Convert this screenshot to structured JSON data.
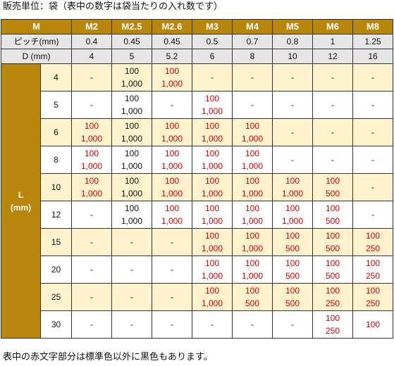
{
  "notes": {
    "top": "販売単位：袋（表中の数字は袋当たりの入れ数です）",
    "bottom": "表中の赤文字部分は標準色以外に黒色もあります。"
  },
  "header": {
    "m_label": "M",
    "sizes": [
      "M2",
      "M2.5",
      "M2.6",
      "M3",
      "M4",
      "M5",
      "M6",
      "M8"
    ],
    "pitch_label": "ピッチ(mm)",
    "pitch": [
      "0.4",
      "0.45",
      "0.45",
      "0.5",
      "0.7",
      "0.8",
      "1",
      "1.25"
    ],
    "d_label": "D (mm)",
    "d": [
      "4",
      "5",
      "5.2",
      "6",
      "8",
      "10",
      "12",
      "16"
    ]
  },
  "l_label_1": "L",
  "l_label_2": "(mm)",
  "rows": [
    {
      "L": "4",
      "shade": "cream",
      "cells": [
        {
          "v": [
            "-"
          ],
          "c": "blk"
        },
        {
          "v": [
            "100",
            "1,000"
          ],
          "c": "blk"
        },
        {
          "v": [
            "100",
            "1,000"
          ],
          "c": "red"
        },
        {
          "v": [
            "-"
          ],
          "c": "blk"
        },
        {
          "v": [
            "-"
          ],
          "c": "blk"
        },
        {
          "v": [
            "-"
          ],
          "c": "blk"
        },
        {
          "v": [
            "-"
          ],
          "c": "blk"
        },
        {
          "v": [
            "-"
          ],
          "c": "blk"
        }
      ]
    },
    {
      "L": "5",
      "shade": "white",
      "cells": [
        {
          "v": [
            "-"
          ],
          "c": "blk"
        },
        {
          "v": [
            "100",
            "1,000"
          ],
          "c": "blk"
        },
        {
          "v": [
            "-"
          ],
          "c": "blk"
        },
        {
          "v": [
            "100",
            "1,000"
          ],
          "c": "red"
        },
        {
          "v": [
            "-"
          ],
          "c": "blk"
        },
        {
          "v": [
            "-"
          ],
          "c": "blk"
        },
        {
          "v": [
            "-"
          ],
          "c": "blk"
        },
        {
          "v": [
            "-"
          ],
          "c": "blk"
        }
      ]
    },
    {
      "L": "6",
      "shade": "cream",
      "cells": [
        {
          "v": [
            "100",
            "1,000"
          ],
          "c": "red"
        },
        {
          "v": [
            "100",
            "1,000"
          ],
          "c": "blk"
        },
        {
          "v": [
            "100",
            "1,000"
          ],
          "c": "red"
        },
        {
          "v": [
            "100",
            "1,000"
          ],
          "c": "red"
        },
        {
          "v": [
            "100",
            "1,000"
          ],
          "c": "red"
        },
        {
          "v": [
            "-"
          ],
          "c": "blk"
        },
        {
          "v": [
            "-"
          ],
          "c": "blk"
        },
        {
          "v": [
            "-"
          ],
          "c": "blk"
        }
      ]
    },
    {
      "L": "8",
      "shade": "white",
      "cells": [
        {
          "v": [
            "100",
            "1,000"
          ],
          "c": "red"
        },
        {
          "v": [
            "100",
            "1,000"
          ],
          "c": "blk"
        },
        {
          "v": [
            "100",
            "1,000"
          ],
          "c": "red"
        },
        {
          "v": [
            "100",
            "1,000"
          ],
          "c": "red"
        },
        {
          "v": [
            "100",
            "1,000"
          ],
          "c": "red"
        },
        {
          "v": [
            "-"
          ],
          "c": "blk"
        },
        {
          "v": [
            "-"
          ],
          "c": "blk"
        },
        {
          "v": [
            "-"
          ],
          "c": "blk"
        }
      ]
    },
    {
      "L": "10",
      "shade": "cream",
      "cells": [
        {
          "v": [
            "100",
            "1,000"
          ],
          "c": "red"
        },
        {
          "v": [
            "100",
            "1,000"
          ],
          "c": "blk"
        },
        {
          "v": [
            "100",
            "1,000"
          ],
          "c": "red"
        },
        {
          "v": [
            "100",
            "1,000"
          ],
          "c": "red"
        },
        {
          "v": [
            "100",
            "1,000"
          ],
          "c": "red"
        },
        {
          "v": [
            "100",
            "1,000"
          ],
          "c": "red"
        },
        {
          "v": [
            "100",
            "500"
          ],
          "c": "red"
        },
        {
          "v": [
            "-"
          ],
          "c": "blk"
        }
      ]
    },
    {
      "L": "12",
      "shade": "white",
      "cells": [
        {
          "v": [
            "-"
          ],
          "c": "blk"
        },
        {
          "v": [
            "100",
            "1,000"
          ],
          "c": "blk"
        },
        {
          "v": [
            "100",
            "1,000"
          ],
          "c": "red"
        },
        {
          "v": [
            "100",
            "1,000"
          ],
          "c": "red"
        },
        {
          "v": [
            "100",
            "1,000"
          ],
          "c": "red"
        },
        {
          "v": [
            "100",
            "1,000"
          ],
          "c": "red"
        },
        {
          "v": [
            "100",
            "500"
          ],
          "c": "red"
        },
        {
          "v": [
            "-"
          ],
          "c": "blk"
        }
      ]
    },
    {
      "L": "15",
      "shade": "cream",
      "cells": [
        {
          "v": [
            "-"
          ],
          "c": "blk"
        },
        {
          "v": [
            "-"
          ],
          "c": "blk"
        },
        {
          "v": [
            "-"
          ],
          "c": "blk"
        },
        {
          "v": [
            "100",
            "1,000"
          ],
          "c": "red"
        },
        {
          "v": [
            "100",
            "1,000"
          ],
          "c": "red"
        },
        {
          "v": [
            "100",
            "500"
          ],
          "c": "red"
        },
        {
          "v": [
            "100",
            "500"
          ],
          "c": "red"
        },
        {
          "v": [
            "100",
            "250"
          ],
          "c": "red"
        }
      ]
    },
    {
      "L": "20",
      "shade": "white",
      "cells": [
        {
          "v": [
            "-"
          ],
          "c": "blk"
        },
        {
          "v": [
            "-"
          ],
          "c": "blk"
        },
        {
          "v": [
            "-"
          ],
          "c": "blk"
        },
        {
          "v": [
            "100",
            "1,000"
          ],
          "c": "red"
        },
        {
          "v": [
            "100",
            "1,000"
          ],
          "c": "red"
        },
        {
          "v": [
            "100",
            "500"
          ],
          "c": "red"
        },
        {
          "v": [
            "100",
            "500"
          ],
          "c": "red"
        },
        {
          "v": [
            "100",
            "250"
          ],
          "c": "red"
        }
      ]
    },
    {
      "L": "25",
      "shade": "cream",
      "cells": [
        {
          "v": [
            "-"
          ],
          "c": "blk"
        },
        {
          "v": [
            "-"
          ],
          "c": "blk"
        },
        {
          "v": [
            "-"
          ],
          "c": "blk"
        },
        {
          "v": [
            "100",
            "1,000"
          ],
          "c": "red"
        },
        {
          "v": [
            "100",
            "500"
          ],
          "c": "red"
        },
        {
          "v": [
            "100",
            "500"
          ],
          "c": "red"
        },
        {
          "v": [
            "100",
            "250"
          ],
          "c": "red"
        },
        {
          "v": [
            "100",
            "250"
          ],
          "c": "red"
        }
      ]
    },
    {
      "L": "30",
      "shade": "white",
      "cells": [
        {
          "v": [
            "-"
          ],
          "c": "blk"
        },
        {
          "v": [
            "-"
          ],
          "c": "blk"
        },
        {
          "v": [
            "-"
          ],
          "c": "blk"
        },
        {
          "v": [
            "-"
          ],
          "c": "blk"
        },
        {
          "v": [
            "-"
          ],
          "c": "blk"
        },
        {
          "v": [
            "-"
          ],
          "c": "blk"
        },
        {
          "v": [
            "100",
            "250"
          ],
          "c": "red"
        },
        {
          "v": [
            "100"
          ],
          "c": "red"
        }
      ]
    }
  ],
  "colors": {
    "header_gold": "#b8860b",
    "row_cream": "#fff2cc",
    "spec_gray": "#e6e6e6",
    "red_text": "#d40000"
  }
}
